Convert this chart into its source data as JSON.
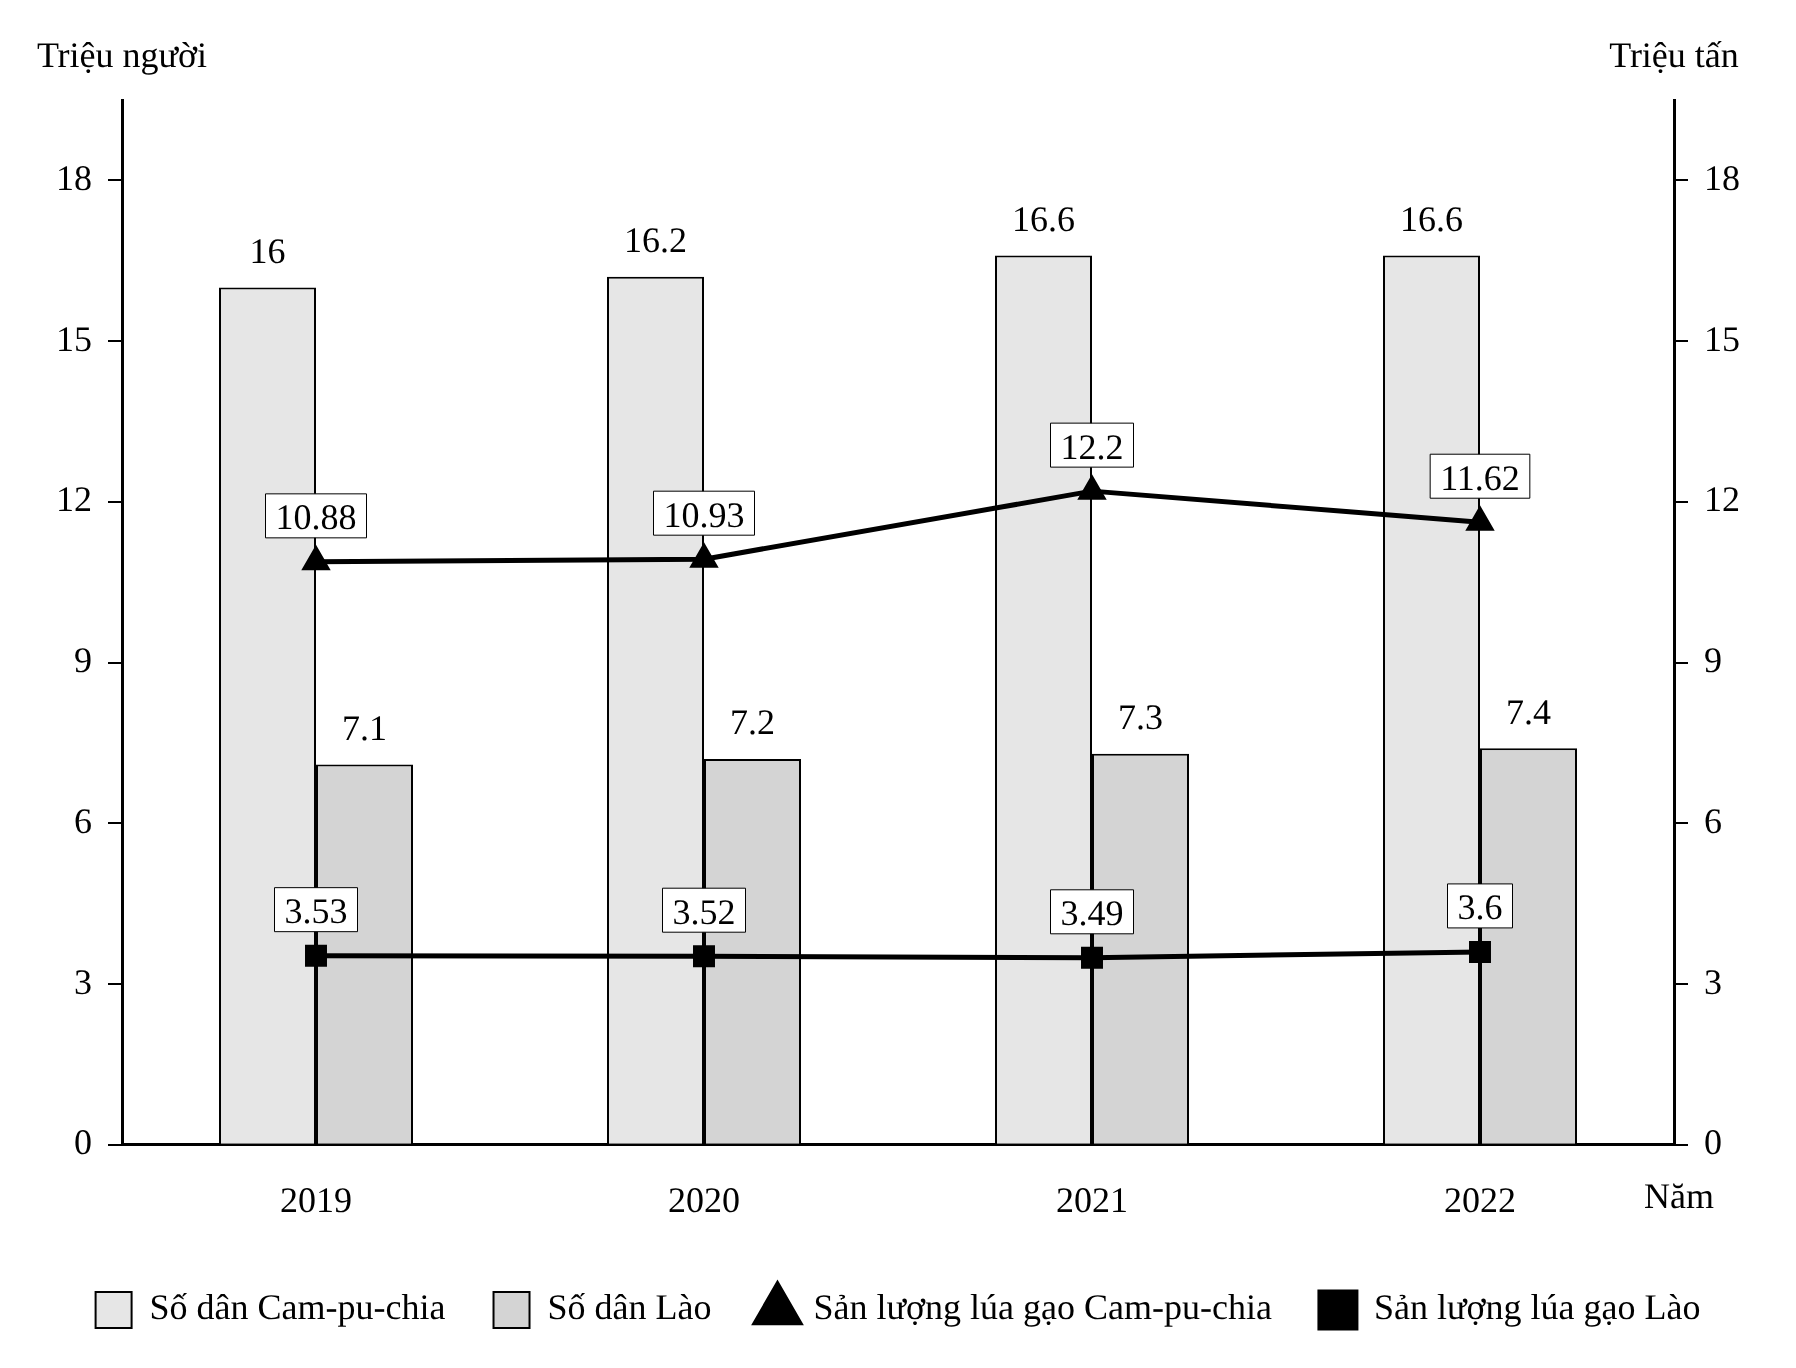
{
  "chart_data": {
    "type": "bar",
    "categories": [
      "2019",
      "2020",
      "2021",
      "2022"
    ],
    "xlabel": "Năm",
    "ylabel": "Triệu người",
    "y2label": "Triệu tấn",
    "ylim": [
      0,
      19.5
    ],
    "yticks": [
      0,
      3,
      6,
      9,
      12,
      15,
      18
    ],
    "y2lim": [
      0,
      19.5
    ],
    "y2ticks": [
      0,
      3,
      6,
      9,
      12,
      15,
      18
    ],
    "grid": false,
    "legend": "bottom",
    "data_labels": true,
    "series": [
      {
        "name": "Số dân Cam-pu-chia",
        "color": "#e6e6e6",
        "values": [
          16,
          16.2,
          16.6,
          16.6
        ]
      },
      {
        "name": "Số dân Lào",
        "color": "#d4d4d4",
        "values": [
          7.1,
          7.2,
          7.3,
          7.4
        ]
      },
      {
        "name": "Sản lượng lúa gạo Cam-pu-chia",
        "type": "line",
        "axis": "y2",
        "marker": "triangle",
        "color": "#000000",
        "values": [
          10.88,
          10.93,
          12.2,
          11.62
        ]
      },
      {
        "name": "Sản lượng lúa gạo Lào",
        "type": "line",
        "axis": "y2",
        "marker": "square",
        "color": "#000000",
        "values": [
          3.53,
          3.52,
          3.49,
          3.6
        ]
      }
    ]
  }
}
